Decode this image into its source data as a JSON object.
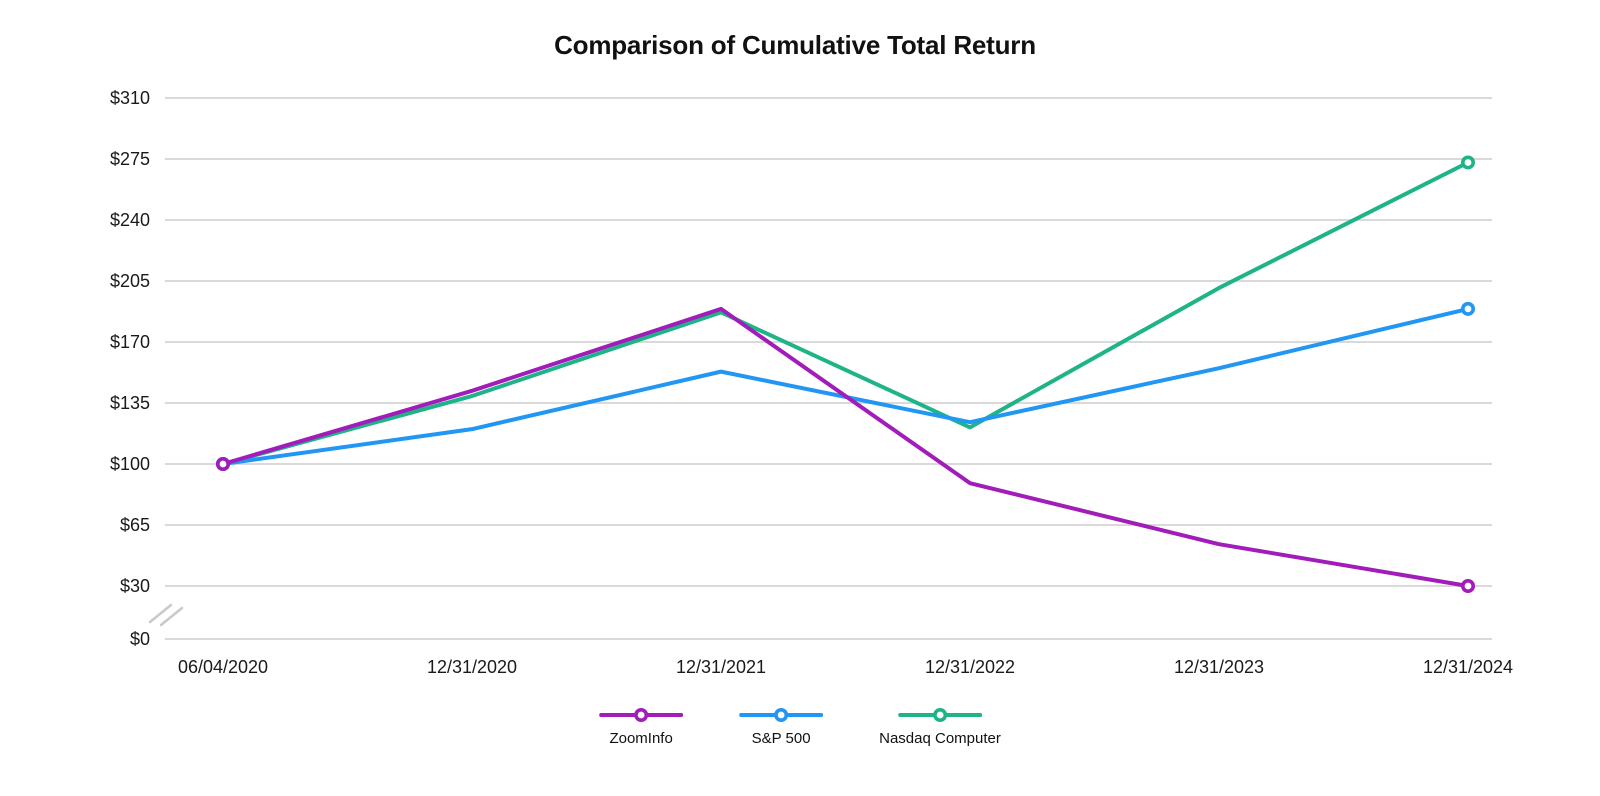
{
  "page": {
    "background": "#ffffff",
    "text_color": "#1a1a1a"
  },
  "chart_data": {
    "type": "line",
    "title": "Comparison of Cumulative Total Return",
    "x_categories": [
      "06/04/2020",
      "12/31/2020",
      "12/31/2021",
      "12/31/2022",
      "12/31/2023",
      "12/31/2024"
    ],
    "y_tick_labels": [
      "$310",
      "$275",
      "$240",
      "$205",
      "$170",
      "$135",
      "$100",
      "$65",
      "$30",
      "$0"
    ],
    "y_tick_values": [
      310,
      275,
      240,
      205,
      170,
      135,
      100,
      65,
      30,
      0
    ],
    "y_axis": {
      "currency_prefix": "$",
      "tick_step": 35,
      "scale_min": 30,
      "scale_max": 310,
      "axis_break": true,
      "axis_break_between": [
        "$0",
        "$30"
      ]
    },
    "grid": "horizontal-only",
    "legend_position": "bottom-center",
    "markers": "endpoints-only",
    "series": [
      {
        "name": "ZoomInfo",
        "color": "#A11CB8",
        "values": [
          100,
          142,
          189,
          89,
          54,
          30
        ]
      },
      {
        "name": "S&P 500",
        "color": "#2196F3",
        "values": [
          100,
          120,
          153,
          124,
          155,
          189
        ]
      },
      {
        "name": "Nasdaq Computer",
        "color": "#1EB488",
        "values": [
          100,
          139,
          187,
          121,
          201,
          273
        ]
      }
    ]
  },
  "colors": {
    "gridline": "#d9d9d9",
    "axis_break_mark": "#c9c9c9",
    "marker_fill": "#ffffff"
  }
}
